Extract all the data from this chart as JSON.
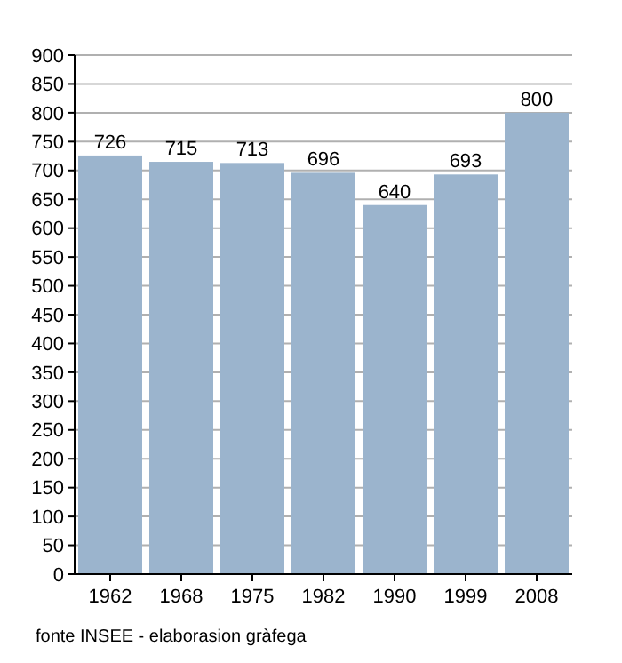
{
  "chart_data": {
    "type": "bar",
    "categories": [
      "1962",
      "1968",
      "1975",
      "1982",
      "1990",
      "1999",
      "2008"
    ],
    "values": [
      726,
      715,
      713,
      696,
      640,
      693,
      800
    ],
    "color": "#9bb4cd",
    "data_labels": true,
    "grid": "y",
    "ylim": [
      0,
      900
    ],
    "yticks": [
      0,
      50,
      100,
      150,
      200,
      250,
      300,
      350,
      400,
      450,
      500,
      550,
      600,
      650,
      700,
      750,
      800,
      850,
      900
    ],
    "annotations": [
      "fonte INSEE - elaborasion gràfega"
    ]
  }
}
